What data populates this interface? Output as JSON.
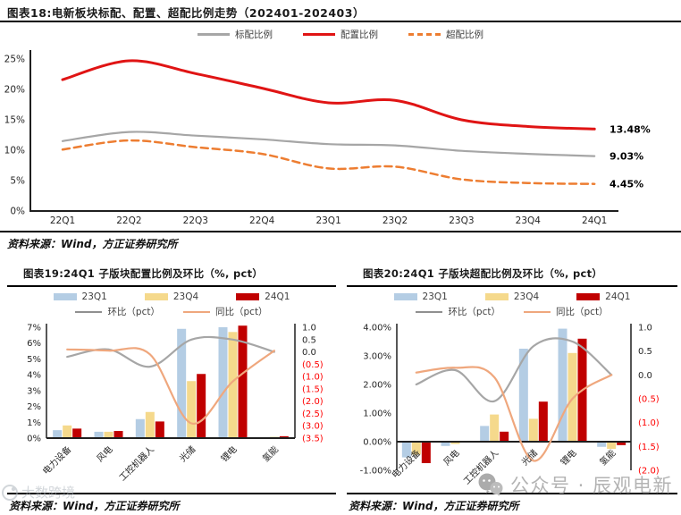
{
  "titles": {
    "fig18": "图表18:电新板块标配、配置、超配比例走势（202401-202403）",
    "fig19": "图表19:24Q1 子版块配置比例及环比（%, pct）",
    "fig20": "图表20:24Q1 子版块超配比例及环比（%, pct）"
  },
  "sources": {
    "fig18": "资料来源：Wind，方正证券研究所",
    "fig19": "资料来源：Wind，方正证券研究所",
    "fig20": "资料来源：Wind，方正证券研究所"
  },
  "watermarks": {
    "right_text": "公众号 · 辰观电新",
    "left_text": "大数跨境"
  },
  "colors": {
    "accent_red": "#e01414",
    "dark_red": "#c00000",
    "light_blue": "#b4cde4",
    "light_yellow": "#f5d98c",
    "gray_line": "#a6a6a6",
    "orange_dash": "#ed7d31",
    "light_orange": "#efa77d",
    "axis": "#1f1f1f",
    "negative_tick": "#ff0000",
    "watermark_gray": "#b3b3b3"
  },
  "chart_data": [
    {
      "type": "line",
      "title": "电新板块标配、配置、超配比例走势（202401-202403）",
      "x": [
        "22Q1",
        "22Q2",
        "22Q3",
        "22Q4",
        "23Q1",
        "23Q2",
        "23Q3",
        "23Q4",
        "24Q1"
      ],
      "ylim": [
        0,
        25
      ],
      "yticks": [
        "0%",
        "5%",
        "10%",
        "15%",
        "20%",
        "25%"
      ],
      "grid": false,
      "legend_position": "top",
      "series": [
        {
          "name": "标配比例",
          "color": "#a6a6a6",
          "dash": false,
          "width": 2.2,
          "values": [
            11.5,
            13.0,
            12.4,
            11.8,
            11.0,
            10.8,
            9.9,
            9.4,
            9.03
          ],
          "end_label": "9.03%"
        },
        {
          "name": "配置比例",
          "color": "#e01414",
          "dash": false,
          "width": 3,
          "values": [
            21.6,
            24.7,
            22.6,
            20.2,
            17.8,
            18.2,
            15.0,
            13.9,
            13.48
          ],
          "end_label": "13.48%"
        },
        {
          "name": "超配比例",
          "color": "#ed7d31",
          "dash": true,
          "width": 2.5,
          "values": [
            10.1,
            11.6,
            10.5,
            9.4,
            7.0,
            7.3,
            5.2,
            4.6,
            4.45
          ],
          "end_label": "4.45%"
        }
      ]
    },
    {
      "type": "bar",
      "title": "24Q1 子版块配置比例及环比（%, pct）",
      "categories": [
        "电力设备",
        "风电",
        "工控机器人",
        "光储",
        "锂电",
        "氢能"
      ],
      "left_axis": {
        "min": 0,
        "max": 7,
        "ticks": [
          "7%",
          "6%",
          "5%",
          "4%",
          "3%",
          "2%",
          "1%",
          "0%"
        ],
        "tick_values": [
          7,
          6,
          5,
          4,
          3,
          2,
          1,
          0
        ]
      },
      "right_axis": {
        "min": -3.5,
        "max": 1.0,
        "ticks": [
          "1.0",
          "0.5",
          "0.0",
          "(0.5)",
          "(1.0)",
          "(1.5)",
          "(2.0)",
          "(2.5)",
          "(3.0)",
          "(3.5)"
        ],
        "tick_values": [
          1.0,
          0.5,
          0.0,
          -0.5,
          -1.0,
          -1.5,
          -2.0,
          -2.5,
          -3.0,
          -3.5
        ]
      },
      "bar_series": [
        {
          "name": "23Q1",
          "color": "#b4cde4",
          "values": [
            0.5,
            0.4,
            1.2,
            6.9,
            7.0,
            0.03
          ]
        },
        {
          "name": "23Q4",
          "color": "#f5d98c",
          "values": [
            0.8,
            0.4,
            1.65,
            3.6,
            6.7,
            0.08
          ]
        },
        {
          "name": "24Q1",
          "color": "#c00000",
          "values": [
            0.6,
            0.45,
            1.05,
            4.05,
            7.1,
            0.12
          ]
        }
      ],
      "line_series": [
        {
          "name": "环比（pct）",
          "color": "#a6a6a6",
          "values": [
            -0.2,
            0.1,
            -0.6,
            0.5,
            0.5,
            0.0
          ]
        },
        {
          "name": "同比（pct）",
          "color": "#efa77d",
          "values": [
            0.1,
            0.05,
            -0.1,
            -2.9,
            -1.2,
            0.05
          ]
        }
      ]
    },
    {
      "type": "bar",
      "title": "24Q1 子版块超配比例及环比（%, pct）",
      "categories": [
        "电力设备",
        "风电",
        "工控机器人",
        "光储",
        "锂电",
        "氢能"
      ],
      "left_axis": {
        "min": -1,
        "max": 4,
        "ticks": [
          "4.00%",
          "3.00%",
          "2.00%",
          "1.00%",
          "0.00%",
          "-1.00%"
        ],
        "tick_values": [
          4,
          3,
          2,
          1,
          0,
          -1
        ]
      },
      "right_axis": {
        "min": -2.0,
        "max": 1.0,
        "ticks": [
          "1.0",
          "0.5",
          "0.0",
          "(0.5)",
          "(1.0)",
          "(1.5)",
          "(2.0)"
        ],
        "tick_values": [
          1.0,
          0.5,
          0.0,
          -0.5,
          -1.0,
          -1.5,
          -2.0
        ]
      },
      "bar_series": [
        {
          "name": "23Q1",
          "color": "#b4cde4",
          "values": [
            -0.55,
            -0.15,
            0.55,
            3.25,
            3.95,
            -0.18
          ]
        },
        {
          "name": "23Q4",
          "color": "#f5d98c",
          "values": [
            -0.45,
            -0.08,
            0.95,
            0.8,
            3.1,
            -0.25
          ]
        },
        {
          "name": "24Q1",
          "color": "#c00000",
          "values": [
            -0.75,
            -0.03,
            0.35,
            1.4,
            3.6,
            -0.12
          ]
        }
      ],
      "line_series": [
        {
          "name": "环比（pct）",
          "color": "#a6a6a6",
          "values": [
            -0.2,
            0.1,
            -0.55,
            0.6,
            0.7,
            0.0
          ]
        },
        {
          "name": "同比（pct）",
          "color": "#efa77d",
          "values": [
            0.05,
            0.15,
            -0.05,
            -1.8,
            -0.5,
            0.0
          ]
        }
      ]
    }
  ]
}
